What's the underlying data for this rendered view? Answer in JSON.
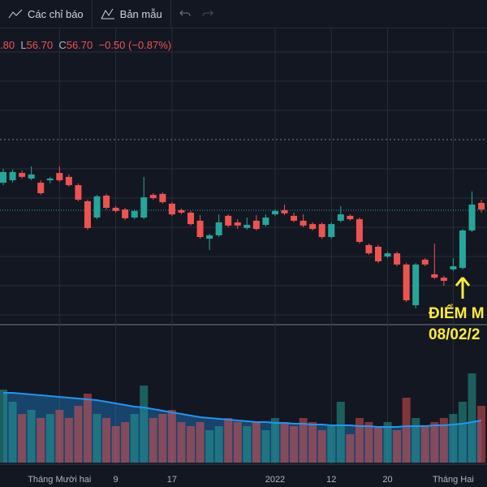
{
  "toolbar": {
    "indicators": "Các chỉ báo",
    "templates": "Bản mẫu"
  },
  "legend": {
    "open_fragment": ".80",
    "low_label": "L",
    "low": "56.70",
    "close_label": "C",
    "close": "56.70",
    "change": "−0.50 (−0.87%)"
  },
  "annotation": {
    "line1": "ĐIỂM M",
    "line2": "08/02/2"
  },
  "chart_data": {
    "type": "candlestick",
    "up_color": "#26a69a",
    "down_color": "#ef5350",
    "ylim": [
      49,
      61
    ],
    "ygrid": [
      60.2,
      59,
      57.8,
      55.4,
      54.2,
      53,
      51.8,
      50.6,
      49.4
    ],
    "reference_line": 56.6,
    "price_line": 53.7,
    "categories": [
      null,
      null,
      null,
      null,
      null,
      null,
      "Tháng Mười hai",
      null,
      null,
      null,
      null,
      null,
      "9",
      null,
      null,
      null,
      null,
      null,
      "17",
      null,
      null,
      null,
      null,
      null,
      null,
      null,
      null,
      null,
      null,
      "2022",
      null,
      null,
      null,
      null,
      null,
      "12",
      null,
      null,
      null,
      null,
      null,
      "20",
      null,
      null,
      null,
      null,
      null,
      null,
      "Tháng Hai",
      null,
      null,
      null
    ],
    "open": [
      54.83,
      54.93,
      55.23,
      55.0,
      54.83,
      54.93,
      55.23,
      55.07,
      54.73,
      54.07,
      53.4,
      54.3,
      53.8,
      53.73,
      53.4,
      53.4,
      54.33,
      54.37,
      53.97,
      53.7,
      53.6,
      53.27,
      52.53,
      52.67,
      53.47,
      53.2,
      52.97,
      53.27,
      53.1,
      53.53,
      53.7,
      53.47,
      53.27,
      53.13,
      53.13,
      52.6,
      53.27,
      53.47,
      53.33,
      52.27,
      52.2,
      51.8,
      51.93,
      51.47,
      49.8,
      51.67,
      51.07,
      50.93,
      51.27,
      51.33,
      52.87,
      54.0
    ],
    "high": [
      55.4,
      55.37,
      55.33,
      55.5,
      54.93,
      55.07,
      55.5,
      55.17,
      54.8,
      54.13,
      54.33,
      54.37,
      53.87,
      53.8,
      53.73,
      55.07,
      54.4,
      54.43,
      54.03,
      53.77,
      53.67,
      53.5,
      52.73,
      53.53,
      53.53,
      53.33,
      53.4,
      53.5,
      53.53,
      53.73,
      53.93,
      53.6,
      53.53,
      53.2,
      53.2,
      53.2,
      53.87,
      53.53,
      53.4,
      52.33,
      52.27,
      52.0,
      52.0,
      51.53,
      51.53,
      51.73,
      52.33,
      51.0,
      51.73,
      52.93,
      54.47,
      54.13
    ],
    "low": [
      54.73,
      54.83,
      55.0,
      54.93,
      54.33,
      54.8,
      54.87,
      54.67,
      54.07,
      52.9,
      53.33,
      53.73,
      53.6,
      53.3,
      53.33,
      53.33,
      54.13,
      53.97,
      53.47,
      53.53,
      53.07,
      52.53,
      52.07,
      52.6,
      53.0,
      52.93,
      52.9,
      52.87,
      53.03,
      53.47,
      53.5,
      53.2,
      53.0,
      52.87,
      52.53,
      52.53,
      53.2,
      53.27,
      52.33,
      51.87,
      51.53,
      51.73,
      51.4,
      49.93,
      49.67,
      51.4,
      50.87,
      50.6,
      51.2,
      51.27,
      52.8,
      53.6
    ],
    "close": [
      55.27,
      55.27,
      55.07,
      55.17,
      54.4,
      55.0,
      54.93,
      54.73,
      54.13,
      52.97,
      54.27,
      53.8,
      53.67,
      53.37,
      53.67,
      54.23,
      54.2,
      54.03,
      53.53,
      53.6,
      53.13,
      52.6,
      52.67,
      53.2,
      53.07,
      53.07,
      53.1,
      52.93,
      53.4,
      53.67,
      53.57,
      53.27,
      53.07,
      52.93,
      52.6,
      53.13,
      53.53,
      53.33,
      52.4,
      51.93,
      51.6,
      51.93,
      51.47,
      50.0,
      51.47,
      51.47,
      50.93,
      50.8,
      51.4,
      52.87,
      53.93,
      53.73
    ],
    "volume": {
      "ylim": [
        0,
        170
      ],
      "values": [
        90,
        75,
        60,
        65,
        55,
        60,
        65,
        55,
        70,
        85,
        60,
        55,
        45,
        50,
        60,
        95,
        55,
        60,
        65,
        50,
        45,
        50,
        40,
        45,
        55,
        50,
        45,
        50,
        40,
        55,
        50,
        45,
        55,
        50,
        40,
        45,
        75,
        35,
        55,
        50,
        45,
        50,
        40,
        80,
        55,
        45,
        50,
        55,
        60,
        75,
        110,
        70
      ],
      "ma": [
        86,
        86,
        85,
        84,
        83,
        82,
        81,
        80,
        79,
        78,
        77,
        75,
        73,
        71,
        69,
        68,
        66,
        64,
        62,
        60,
        58,
        56,
        55,
        54,
        53,
        52,
        51,
        50,
        50,
        49,
        49,
        48,
        48,
        47,
        47,
        46,
        46,
        46,
        45,
        45,
        44,
        44,
        44,
        45,
        45,
        45,
        46,
        46,
        47,
        48,
        50,
        52
      ]
    }
  }
}
